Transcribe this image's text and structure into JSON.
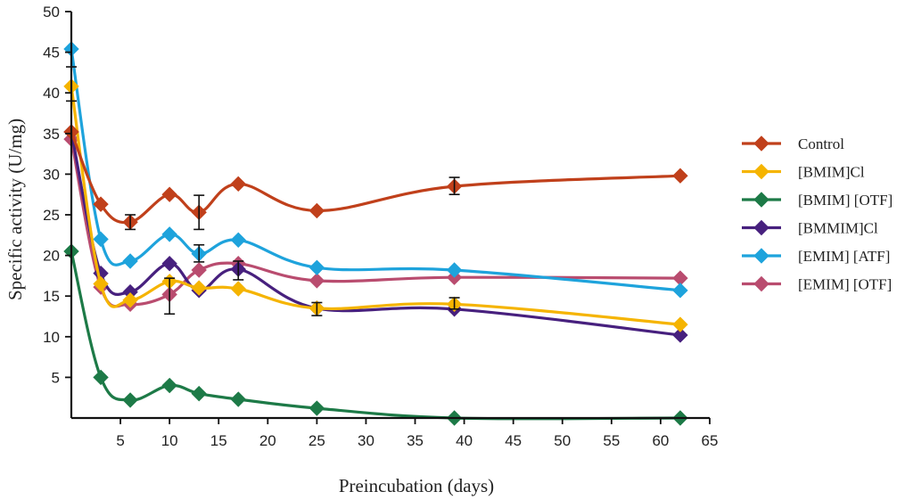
{
  "chart_data": {
    "type": "line",
    "title": "",
    "xlabel": "Preincubation (days)",
    "ylabel": "Specific activity (U/mg)",
    "xlim": [
      0,
      65
    ],
    "ylim": [
      0,
      50
    ],
    "xticks": [
      5,
      10,
      15,
      20,
      25,
      30,
      35,
      40,
      45,
      50,
      55,
      60,
      65
    ],
    "xtick_labels": [
      "5",
      "10",
      "15",
      "20",
      "25",
      "30",
      "35",
      "40",
      "45",
      "50",
      "55",
      "60",
      "65"
    ],
    "yticks": [
      5,
      10,
      15,
      20,
      25,
      30,
      35,
      40,
      45,
      50
    ],
    "ytick_labels": [
      "5",
      "10",
      "15",
      "20",
      "25",
      "30",
      "35",
      "40",
      "45",
      "50"
    ],
    "grid": false,
    "legend_position": "right",
    "series": [
      {
        "name": "Control",
        "color": "#c0401b",
        "x": [
          0,
          3,
          6,
          10,
          13,
          17,
          25,
          39,
          62
        ],
        "y": [
          35.2,
          26.3,
          24.1,
          27.5,
          25.3,
          28.8,
          25.5,
          28.5,
          29.8
        ]
      },
      {
        "name": "[BMIM]Cl",
        "color": "#f5b400",
        "x": [
          0,
          3,
          6,
          10,
          13,
          17,
          25,
          39,
          62
        ],
        "y": [
          40.8,
          16.5,
          14.5,
          16.8,
          16.0,
          15.9,
          13.5,
          14.0,
          11.5
        ]
      },
      {
        "name": "[BMIM] [OTF]",
        "color": "#1d7a47",
        "x": [
          0,
          3,
          6,
          10,
          13,
          17,
          25,
          39,
          62
        ],
        "y": [
          20.5,
          5.0,
          2.2,
          4.0,
          3.0,
          2.3,
          1.2,
          0.0,
          0.0
        ]
      },
      {
        "name": "[BMMIM]Cl",
        "color": "#47207e",
        "x": [
          0,
          3,
          6,
          10,
          13,
          17,
          25,
          39,
          62
        ],
        "y": [
          35.2,
          17.8,
          15.5,
          19.0,
          15.7,
          18.3,
          13.5,
          13.4,
          10.2
        ]
      },
      {
        "name": "[EMIM] [ATF]",
        "color": "#1ea3dc",
        "x": [
          0,
          3,
          6,
          10,
          13,
          17,
          25,
          39,
          62
        ],
        "y": [
          45.4,
          22.0,
          19.3,
          22.6,
          20.2,
          21.9,
          18.5,
          18.2,
          15.7
        ]
      },
      {
        "name": "[EMIM] [OTF]",
        "color": "#b94c6f",
        "x": [
          0,
          3,
          6,
          10,
          13,
          17,
          25,
          39,
          62
        ],
        "y": [
          34.3,
          16.1,
          14.0,
          15.2,
          18.2,
          19.0,
          16.9,
          17.3,
          17.2
        ]
      }
    ],
    "error_bars": [
      {
        "x": 0,
        "low": 39.0,
        "high": 43.2
      },
      {
        "x": 6,
        "low": 23.2,
        "high": 25.0
      },
      {
        "x": 10,
        "low": 12.8,
        "high": 17.2
      },
      {
        "x": 13,
        "low": 23.2,
        "high": 27.4
      },
      {
        "x": 13,
        "low": 19.2,
        "high": 21.3
      },
      {
        "x": 17,
        "low": 17.0,
        "high": 19.3
      },
      {
        "x": 25,
        "low": 12.6,
        "high": 14.2
      },
      {
        "x": 39,
        "low": 27.5,
        "high": 29.6
      },
      {
        "x": 39,
        "low": 13.4,
        "high": 14.8
      }
    ]
  }
}
